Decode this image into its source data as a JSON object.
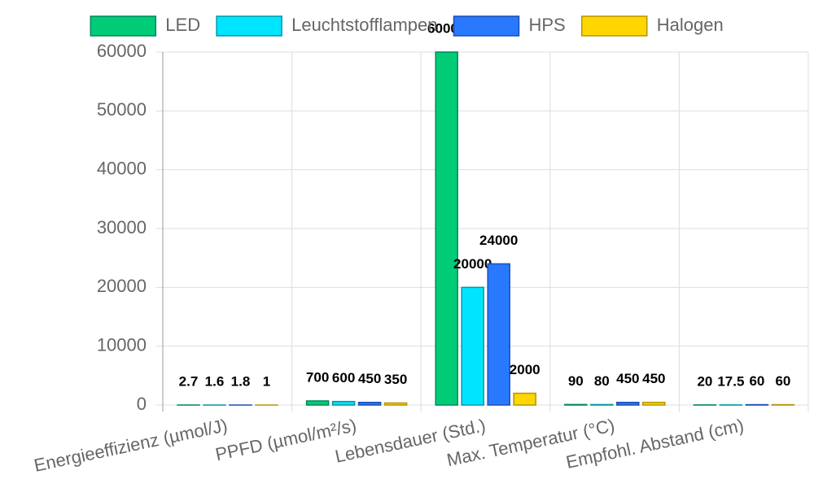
{
  "chart_data": {
    "type": "bar",
    "categories": [
      "Energieeffizienz (µmol/J)",
      "PPFD (µmol/m²/s)",
      "Lebensdauer (Std.)",
      "Max. Temperatur (°C)",
      "Empfohl. Abstand (cm)"
    ],
    "series": [
      {
        "name": "LED",
        "color": "#00cc77",
        "border_color": "#00875a",
        "values": [
          2.7,
          700,
          60000,
          90,
          20
        ]
      },
      {
        "name": "Leuchtstofflampen",
        "color": "#00e5ff",
        "border_color": "#0097a7",
        "values": [
          1.6,
          600,
          20000,
          80,
          17.5
        ]
      },
      {
        "name": "HPS",
        "color": "#2979ff",
        "border_color": "#1a4fb5",
        "values": [
          1.8,
          450,
          24000,
          450,
          60
        ]
      },
      {
        "name": "Halogen",
        "color": "#ffd600",
        "border_color": "#b59500",
        "values": [
          1,
          350,
          2000,
          450,
          60
        ]
      }
    ],
    "ylim": [
      0,
      60000
    ],
    "yticks": [
      0,
      10000,
      20000,
      30000,
      40000,
      50000,
      60000
    ],
    "grid": true,
    "legend": "top"
  }
}
